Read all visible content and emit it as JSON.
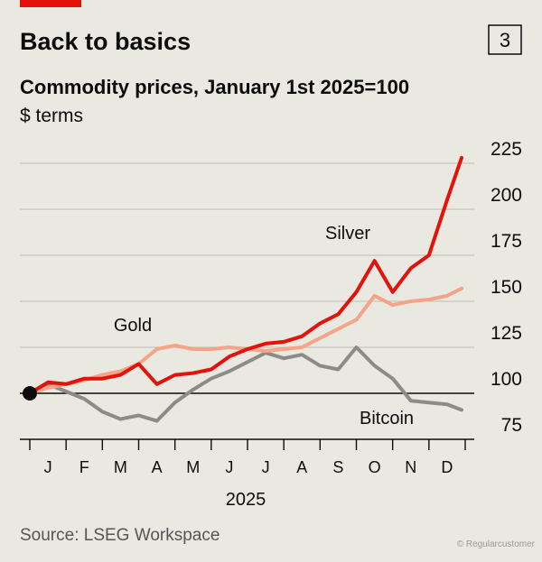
{
  "chart_data": {
    "type": "line",
    "title": "Back to basics",
    "chart_number": "3",
    "subtitle": "Commodity prices, January 1st 2025=100",
    "unit_label": "$ terms",
    "x": [
      0,
      0.5,
      1,
      1.5,
      2,
      2.5,
      3,
      3.5,
      4,
      4.5,
      5,
      5.5,
      6,
      6.5,
      7,
      7.5,
      8,
      8.5,
      9,
      9.5,
      10,
      10.5,
      11,
      11.5,
      11.9
    ],
    "xlim": [
      0,
      12
    ],
    "xticks": [
      0,
      1,
      2,
      3,
      4,
      5,
      6,
      7,
      8,
      9,
      10,
      11,
      12
    ],
    "month_labels": [
      "J",
      "F",
      "M",
      "A",
      "M",
      "J",
      "J",
      "A",
      "S",
      "O",
      "N",
      "D"
    ],
    "x_label": "2025",
    "ylim": [
      75,
      235
    ],
    "yticks": [
      75,
      100,
      125,
      150,
      175,
      200,
      225
    ],
    "baseline": 100,
    "grid": true,
    "series": [
      {
        "name": "Bitcoin",
        "color": "#8c8c86",
        "values": [
          100,
          105,
          101,
          97,
          90,
          86,
          88,
          85,
          95,
          102,
          108,
          112,
          117,
          122,
          119,
          121,
          115,
          113,
          125,
          115,
          108,
          96,
          95,
          94,
          91
        ]
      },
      {
        "name": "Gold",
        "color": "#f4a487",
        "values": [
          100,
          103,
          105,
          107,
          110,
          112,
          116,
          124,
          126,
          124,
          124,
          125,
          124,
          123,
          124,
          125,
          130,
          135,
          140,
          153,
          148,
          150,
          151,
          153,
          157
        ]
      },
      {
        "name": "Silver",
        "color": "#e3120b",
        "values": [
          100,
          106,
          105,
          108,
          108,
          110,
          116,
          105,
          110,
          111,
          113,
          120,
          124,
          127,
          128,
          131,
          138,
          143,
          155,
          172,
          155,
          168,
          175,
          205,
          228
        ]
      }
    ],
    "source": "Source: LSEG Workspace",
    "watermark": "© Regularcustomer"
  }
}
